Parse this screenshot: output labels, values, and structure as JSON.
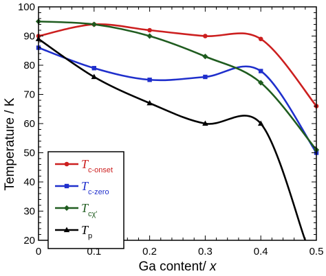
{
  "chart_data": {
    "type": "line",
    "xlabel": "Ga content",
    "xlabel_suffix": "/ ",
    "xlabel_var": "x",
    "ylabel": "Temperature / K",
    "xlim": [
      0,
      0.5
    ],
    "ylim": [
      20,
      100
    ],
    "xticks": [
      0,
      0.1,
      0.2,
      0.3,
      0.4,
      0.5
    ],
    "xtick_labels": [
      "0",
      "0.1",
      "0.2",
      "0.3",
      "0.4",
      "0.5"
    ],
    "yticks": [
      20,
      30,
      40,
      50,
      60,
      70,
      80,
      90,
      100
    ],
    "ytick_labels": [
      "20",
      "30",
      "40",
      "50",
      "60",
      "70",
      "80",
      "90",
      "100"
    ],
    "grid": false,
    "legend_position": "bottom-left",
    "series": [
      {
        "key": "tc_onset",
        "name_main": "T",
        "name_sub": "c-onset",
        "color": "#cc1f1f",
        "marker": "circle",
        "points": [
          [
            0,
            90
          ],
          [
            0.1,
            94
          ],
          [
            0.2,
            92
          ],
          [
            0.3,
            90
          ],
          [
            0.4,
            89
          ],
          [
            0.5,
            66
          ]
        ]
      },
      {
        "key": "tc_zero",
        "name_main": "T",
        "name_sub": "c-zero",
        "color": "#1f2fcc",
        "marker": "square",
        "points": [
          [
            0,
            86
          ],
          [
            0.1,
            79
          ],
          [
            0.2,
            75
          ],
          [
            0.3,
            76
          ],
          [
            0.4,
            78
          ],
          [
            0.5,
            50
          ]
        ]
      },
      {
        "key": "tc_chi",
        "name_main": "T",
        "name_sub": "cχ'",
        "color": "#1f5c1f",
        "marker": "diamond",
        "points": [
          [
            0,
            95
          ],
          [
            0.1,
            94
          ],
          [
            0.2,
            90
          ],
          [
            0.3,
            83
          ],
          [
            0.4,
            74
          ],
          [
            0.5,
            51
          ]
        ]
      },
      {
        "key": "tp",
        "name_main": "T",
        "name_sub": "p",
        "color": "#000000",
        "marker": "triangle",
        "points": [
          [
            0,
            89
          ],
          [
            0.1,
            76
          ],
          [
            0.2,
            67
          ],
          [
            0.3,
            60
          ],
          [
            0.4,
            60
          ],
          [
            0.48,
            20
          ]
        ]
      }
    ]
  }
}
